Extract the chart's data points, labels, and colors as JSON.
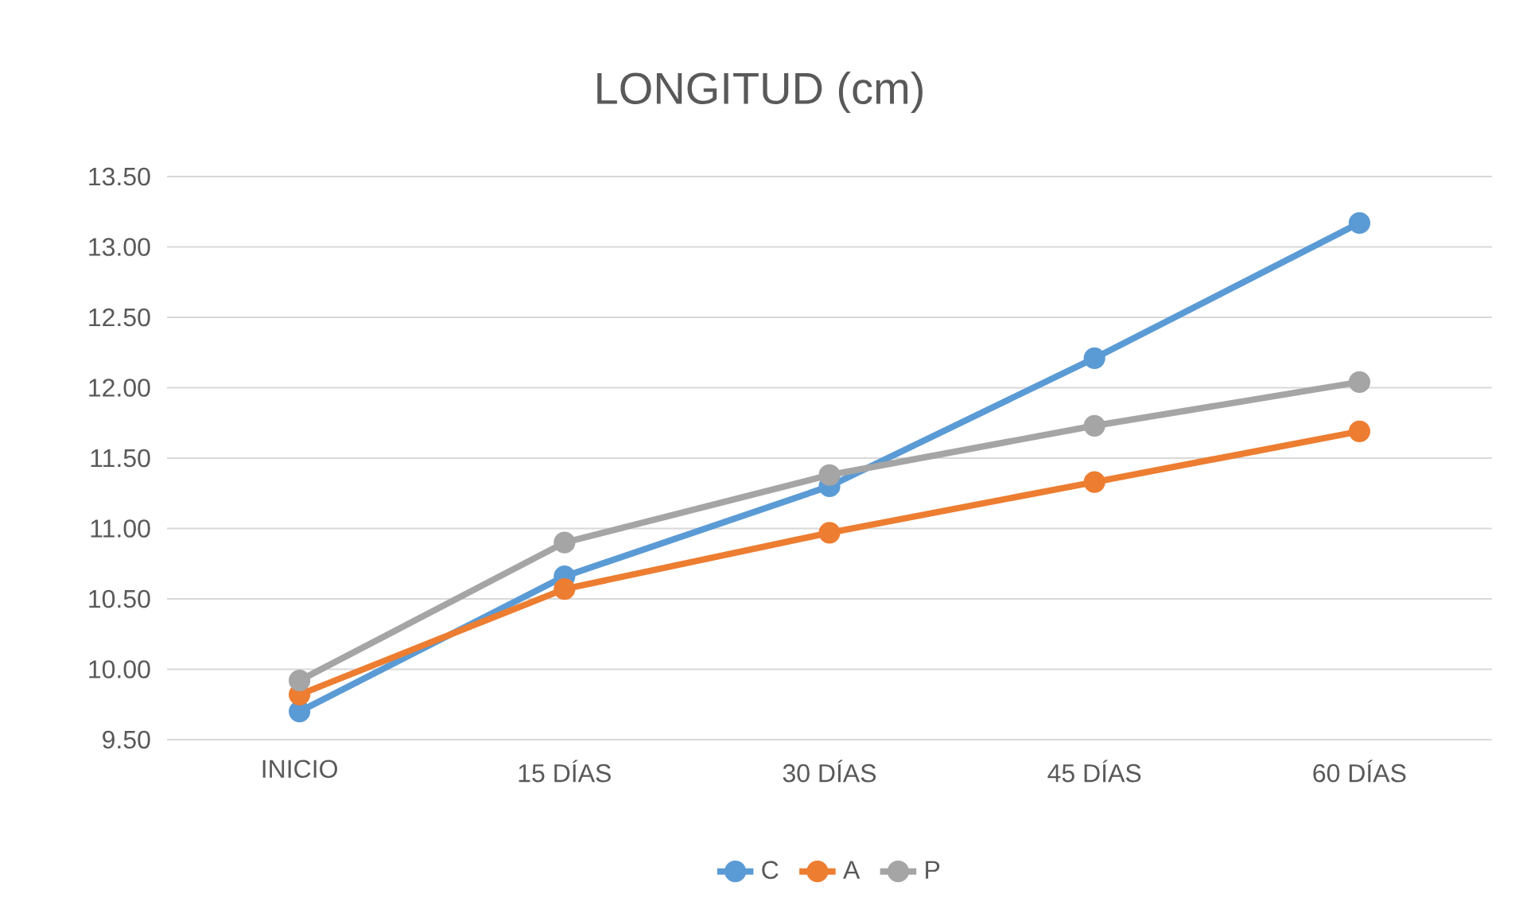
{
  "chart_data": {
    "type": "line",
    "title": "LONGITUD (cm)",
    "categories": [
      "INICIO",
      "15 DÍAS",
      "30 DÍAS",
      "45 DÍAS",
      "60 DÍAS"
    ],
    "series": [
      {
        "name": "C",
        "color": "#5b9bd5",
        "values": [
          9.7,
          10.66,
          11.3,
          12.21,
          13.17
        ]
      },
      {
        "name": "A",
        "color": "#ed7d31",
        "values": [
          9.82,
          10.57,
          10.97,
          11.33,
          11.69
        ]
      },
      {
        "name": "P",
        "color": "#a5a5a5",
        "values": [
          9.92,
          10.9,
          11.38,
          11.73,
          12.04
        ]
      }
    ],
    "ylim": [
      9.5,
      13.5
    ],
    "yticks": [
      {
        "value": 9.5,
        "label": "9.50"
      },
      {
        "value": 10,
        "label": "10.00"
      },
      {
        "value": 10.5,
        "label": "10.50"
      },
      {
        "value": 11,
        "label": "11.00"
      },
      {
        "value": 11.5,
        "label": "11.50"
      },
      {
        "value": 12,
        "label": "12.00"
      },
      {
        "value": 12.5,
        "label": "12.50"
      },
      {
        "value": 13,
        "label": "13.00"
      },
      {
        "value": 13.5,
        "label": "13.50"
      }
    ],
    "grid": "y",
    "legend": "bottom",
    "marker": "circle",
    "line_style": "solid"
  }
}
